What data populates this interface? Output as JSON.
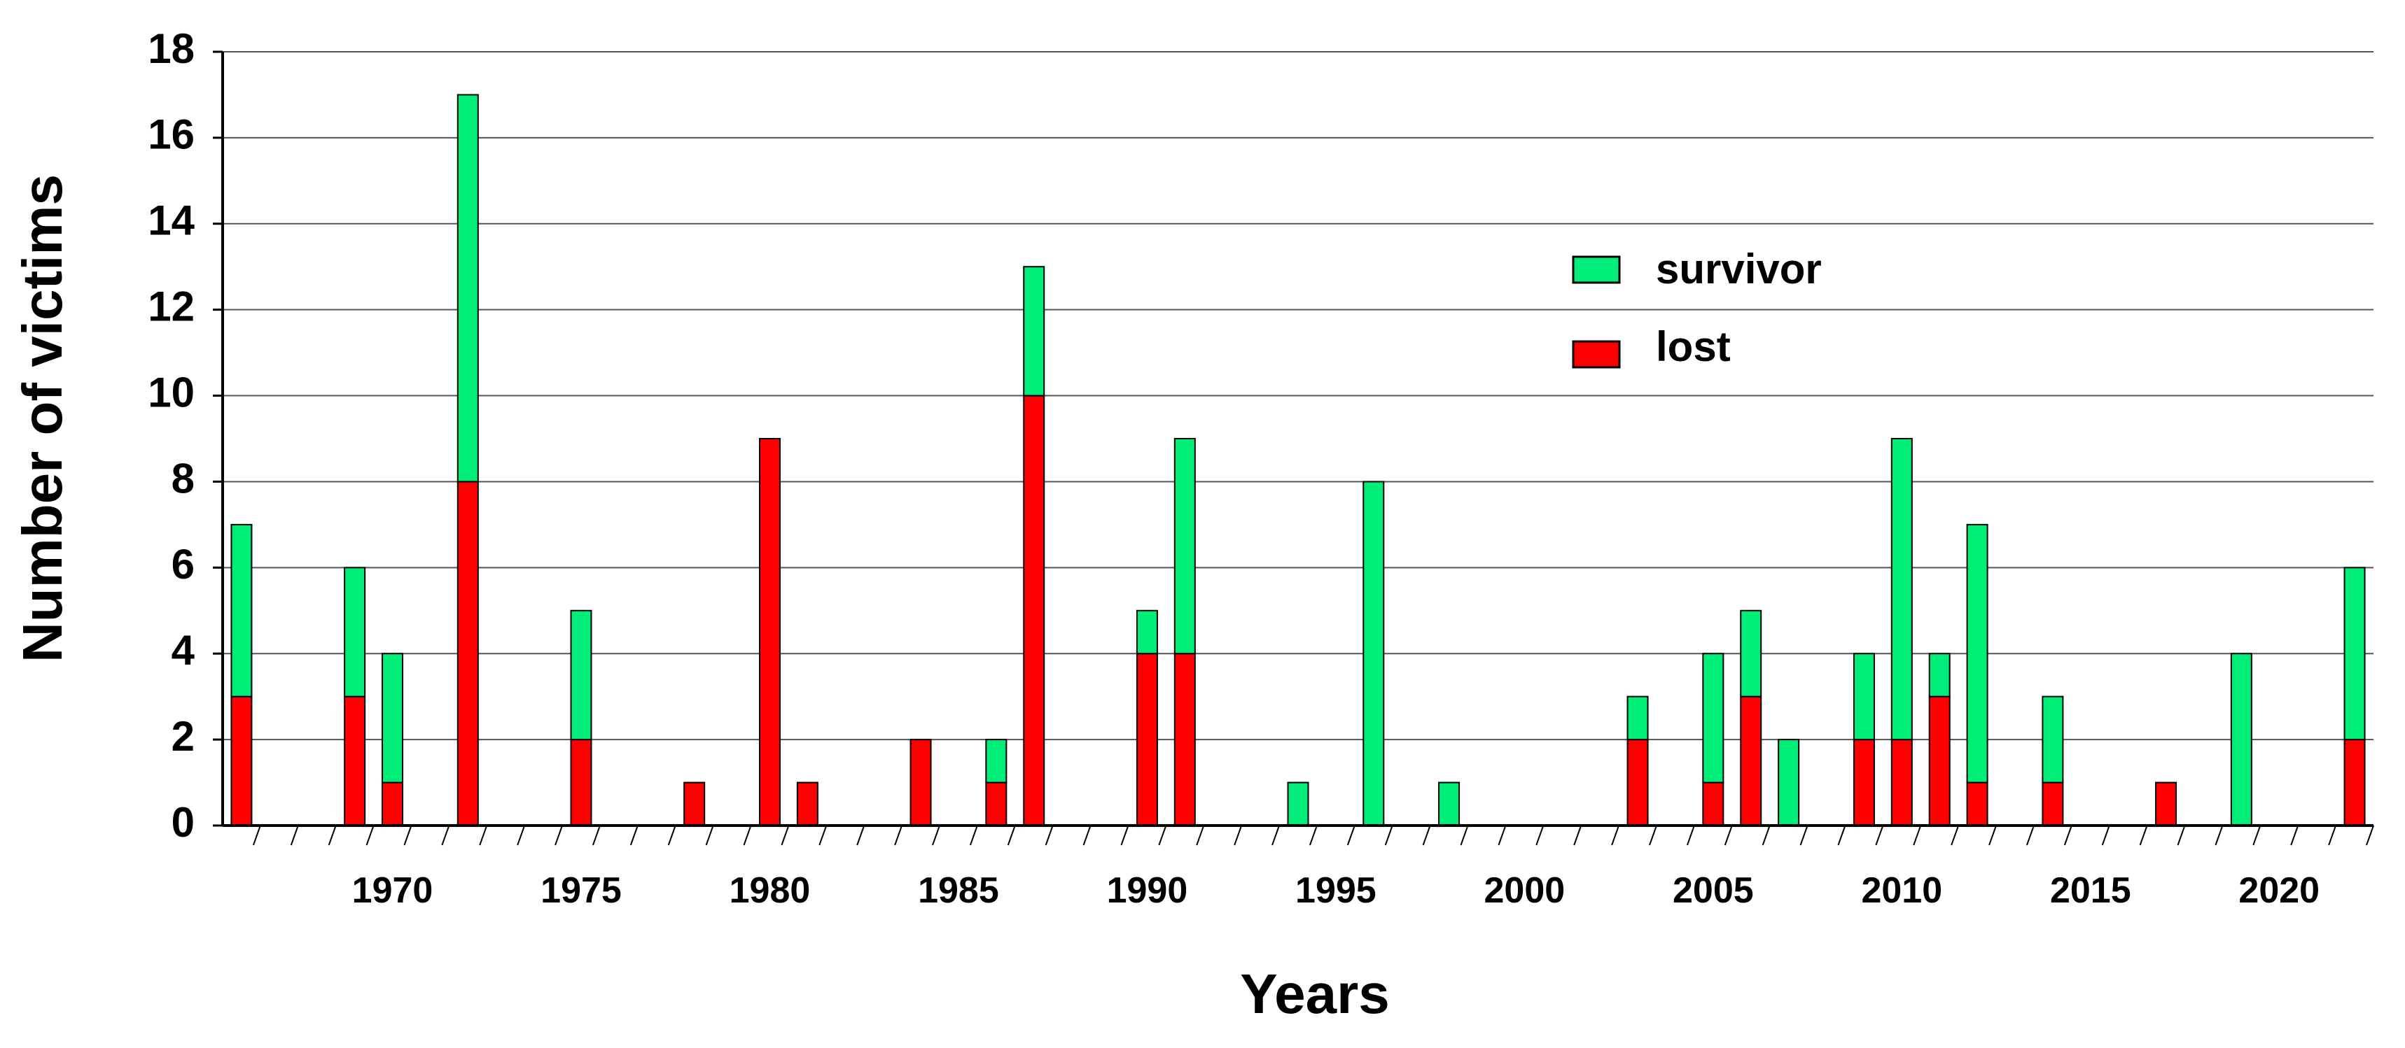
{
  "chart_data": {
    "type": "bar",
    "stacked": true,
    "xlabel": "Years",
    "ylabel": "Number of victims",
    "ylim": [
      0,
      18
    ],
    "yticks": [
      0,
      2,
      4,
      6,
      8,
      10,
      12,
      14,
      16,
      18
    ],
    "xlim": [
      1966,
      2023
    ],
    "xtick_labels": [
      "1970",
      "1975",
      "1980",
      "1985",
      "1990",
      "1995",
      "2000",
      "2005",
      "2010",
      "2015",
      "2020"
    ],
    "grid": true,
    "legend_position": "top-right",
    "colors": {
      "survivor": "#00ee77",
      "lost": "#ff0000",
      "edge": "#000000",
      "grid": "#555555"
    },
    "years": [
      1966,
      1969,
      1970,
      1972,
      1975,
      1978,
      1980,
      1981,
      1984,
      1986,
      1987,
      1990,
      1991,
      1994,
      1996,
      1998,
      2003,
      2005,
      2006,
      2007,
      2009,
      2010,
      2011,
      2012,
      2014,
      2017,
      2019,
      2022
    ],
    "series": [
      {
        "name": "lost",
        "values": [
          3,
          3,
          1,
          8,
          2,
          1,
          9,
          1,
          2,
          1,
          10,
          4,
          4,
          0,
          0,
          0,
          2,
          1,
          3,
          0,
          2,
          2,
          3,
          1,
          1,
          1,
          0,
          2
        ]
      },
      {
        "name": "survivor",
        "values": [
          4,
          3,
          3,
          9,
          3,
          0,
          0,
          0,
          0,
          1,
          3,
          1,
          5,
          1,
          8,
          1,
          1,
          3,
          2,
          2,
          2,
          7,
          1,
          6,
          2,
          0,
          4,
          4
        ]
      }
    ]
  }
}
